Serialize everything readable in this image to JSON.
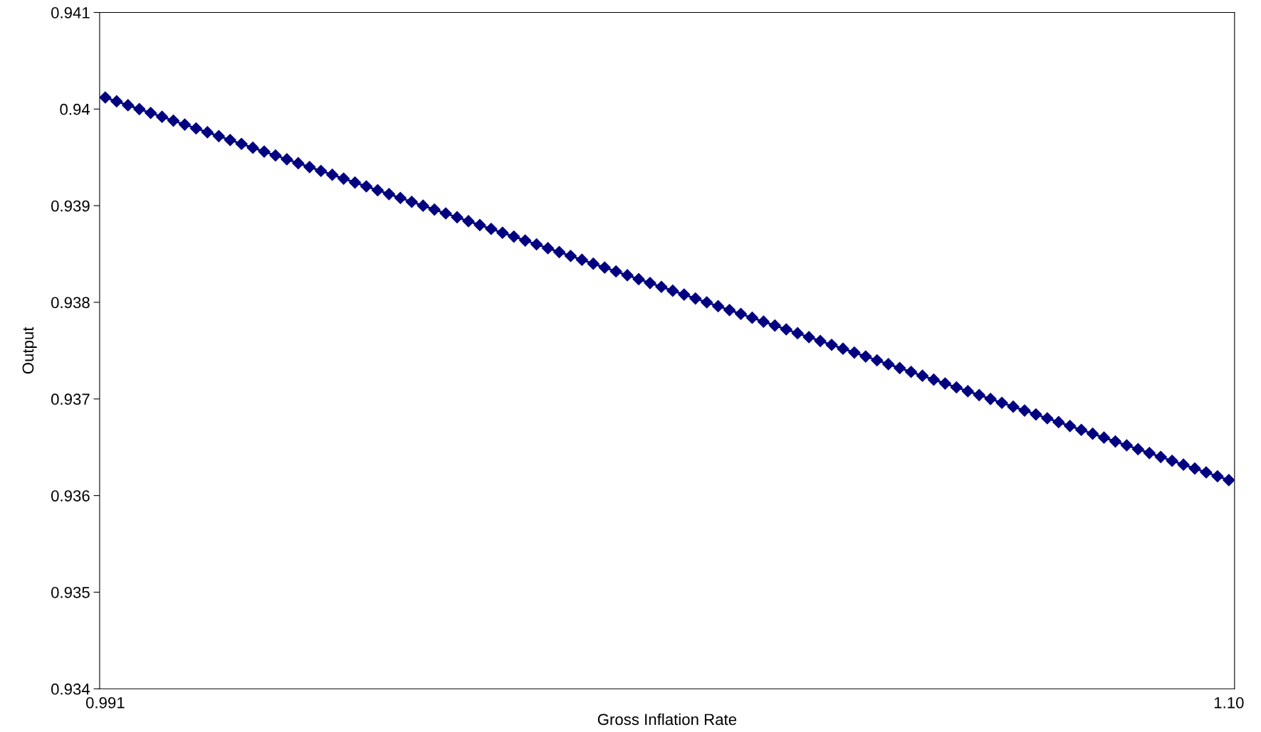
{
  "chart_data": {
    "type": "line",
    "xlabel": "Gross Inflation Rate",
    "ylabel": "Output",
    "categories": [
      "0.991",
      null,
      null,
      null,
      null,
      null,
      null,
      null,
      null,
      null,
      null,
      null,
      null,
      null,
      null,
      null,
      null,
      null,
      null,
      null,
      null,
      null,
      null,
      null,
      null,
      null,
      null,
      null,
      null,
      null,
      null,
      null,
      null,
      null,
      null,
      null,
      null,
      null,
      null,
      null,
      null,
      null,
      null,
      null,
      null,
      null,
      null,
      null,
      null,
      null,
      null,
      null,
      null,
      null,
      null,
      null,
      null,
      null,
      null,
      null,
      null,
      null,
      null,
      null,
      null,
      null,
      null,
      null,
      null,
      null,
      null,
      null,
      null,
      null,
      null,
      null,
      null,
      null,
      null,
      null,
      null,
      null,
      null,
      null,
      null,
      null,
      null,
      null,
      null,
      null,
      null,
      null,
      null,
      null,
      null,
      null,
      null,
      null,
      null,
      "1.10"
    ],
    "series": [
      {
        "color": "#000080",
        "values": [
          0.94012,
          0.94008,
          0.94004,
          0.94,
          0.93996,
          0.93992,
          0.93988,
          0.93984,
          0.9398,
          0.93976,
          0.93972,
          0.93968,
          0.93964,
          0.9396,
          0.93956,
          0.93952,
          0.93948,
          0.93944,
          0.9394,
          0.93936,
          0.93932,
          0.93928,
          0.93924,
          0.9392,
          0.93916,
          0.93912,
          0.93908,
          0.93904,
          0.939,
          0.93896,
          0.93892,
          0.93888,
          0.93884,
          0.9388,
          0.93876,
          0.93872,
          0.93868,
          0.93864,
          0.9386,
          0.93856,
          0.93852,
          0.93848,
          0.93844,
          0.9384,
          0.93836,
          0.93832,
          0.93828,
          0.93824,
          0.9382,
          0.93816,
          0.93812,
          0.93808,
          0.93804,
          0.938,
          0.93796,
          0.93792,
          0.93788,
          0.93784,
          0.9378,
          0.93776,
          0.93772,
          0.93768,
          0.93764,
          0.9376,
          0.93756,
          0.93752,
          0.93748,
          0.93744,
          0.9374,
          0.93736,
          0.93732,
          0.93728,
          0.93724,
          0.9372,
          0.93716,
          0.93712,
          0.93708,
          0.93704,
          0.937,
          0.93696,
          0.93692,
          0.93688,
          0.93684,
          0.9368,
          0.93676,
          0.93672,
          0.93668,
          0.93664,
          0.9366,
          0.93656,
          0.93652,
          0.93648,
          0.93644,
          0.9364,
          0.93636,
          0.93632,
          0.93628,
          0.93624,
          0.9362,
          0.93616
        ]
      }
    ],
    "ylim": [
      0.934,
      0.941
    ],
    "yticks": [
      0.934,
      0.935,
      0.936,
      0.937,
      0.938,
      0.939,
      0.94,
      0.941
    ],
    "marker": "diamond",
    "line_style": "solid",
    "grid": false,
    "legend": false
  }
}
